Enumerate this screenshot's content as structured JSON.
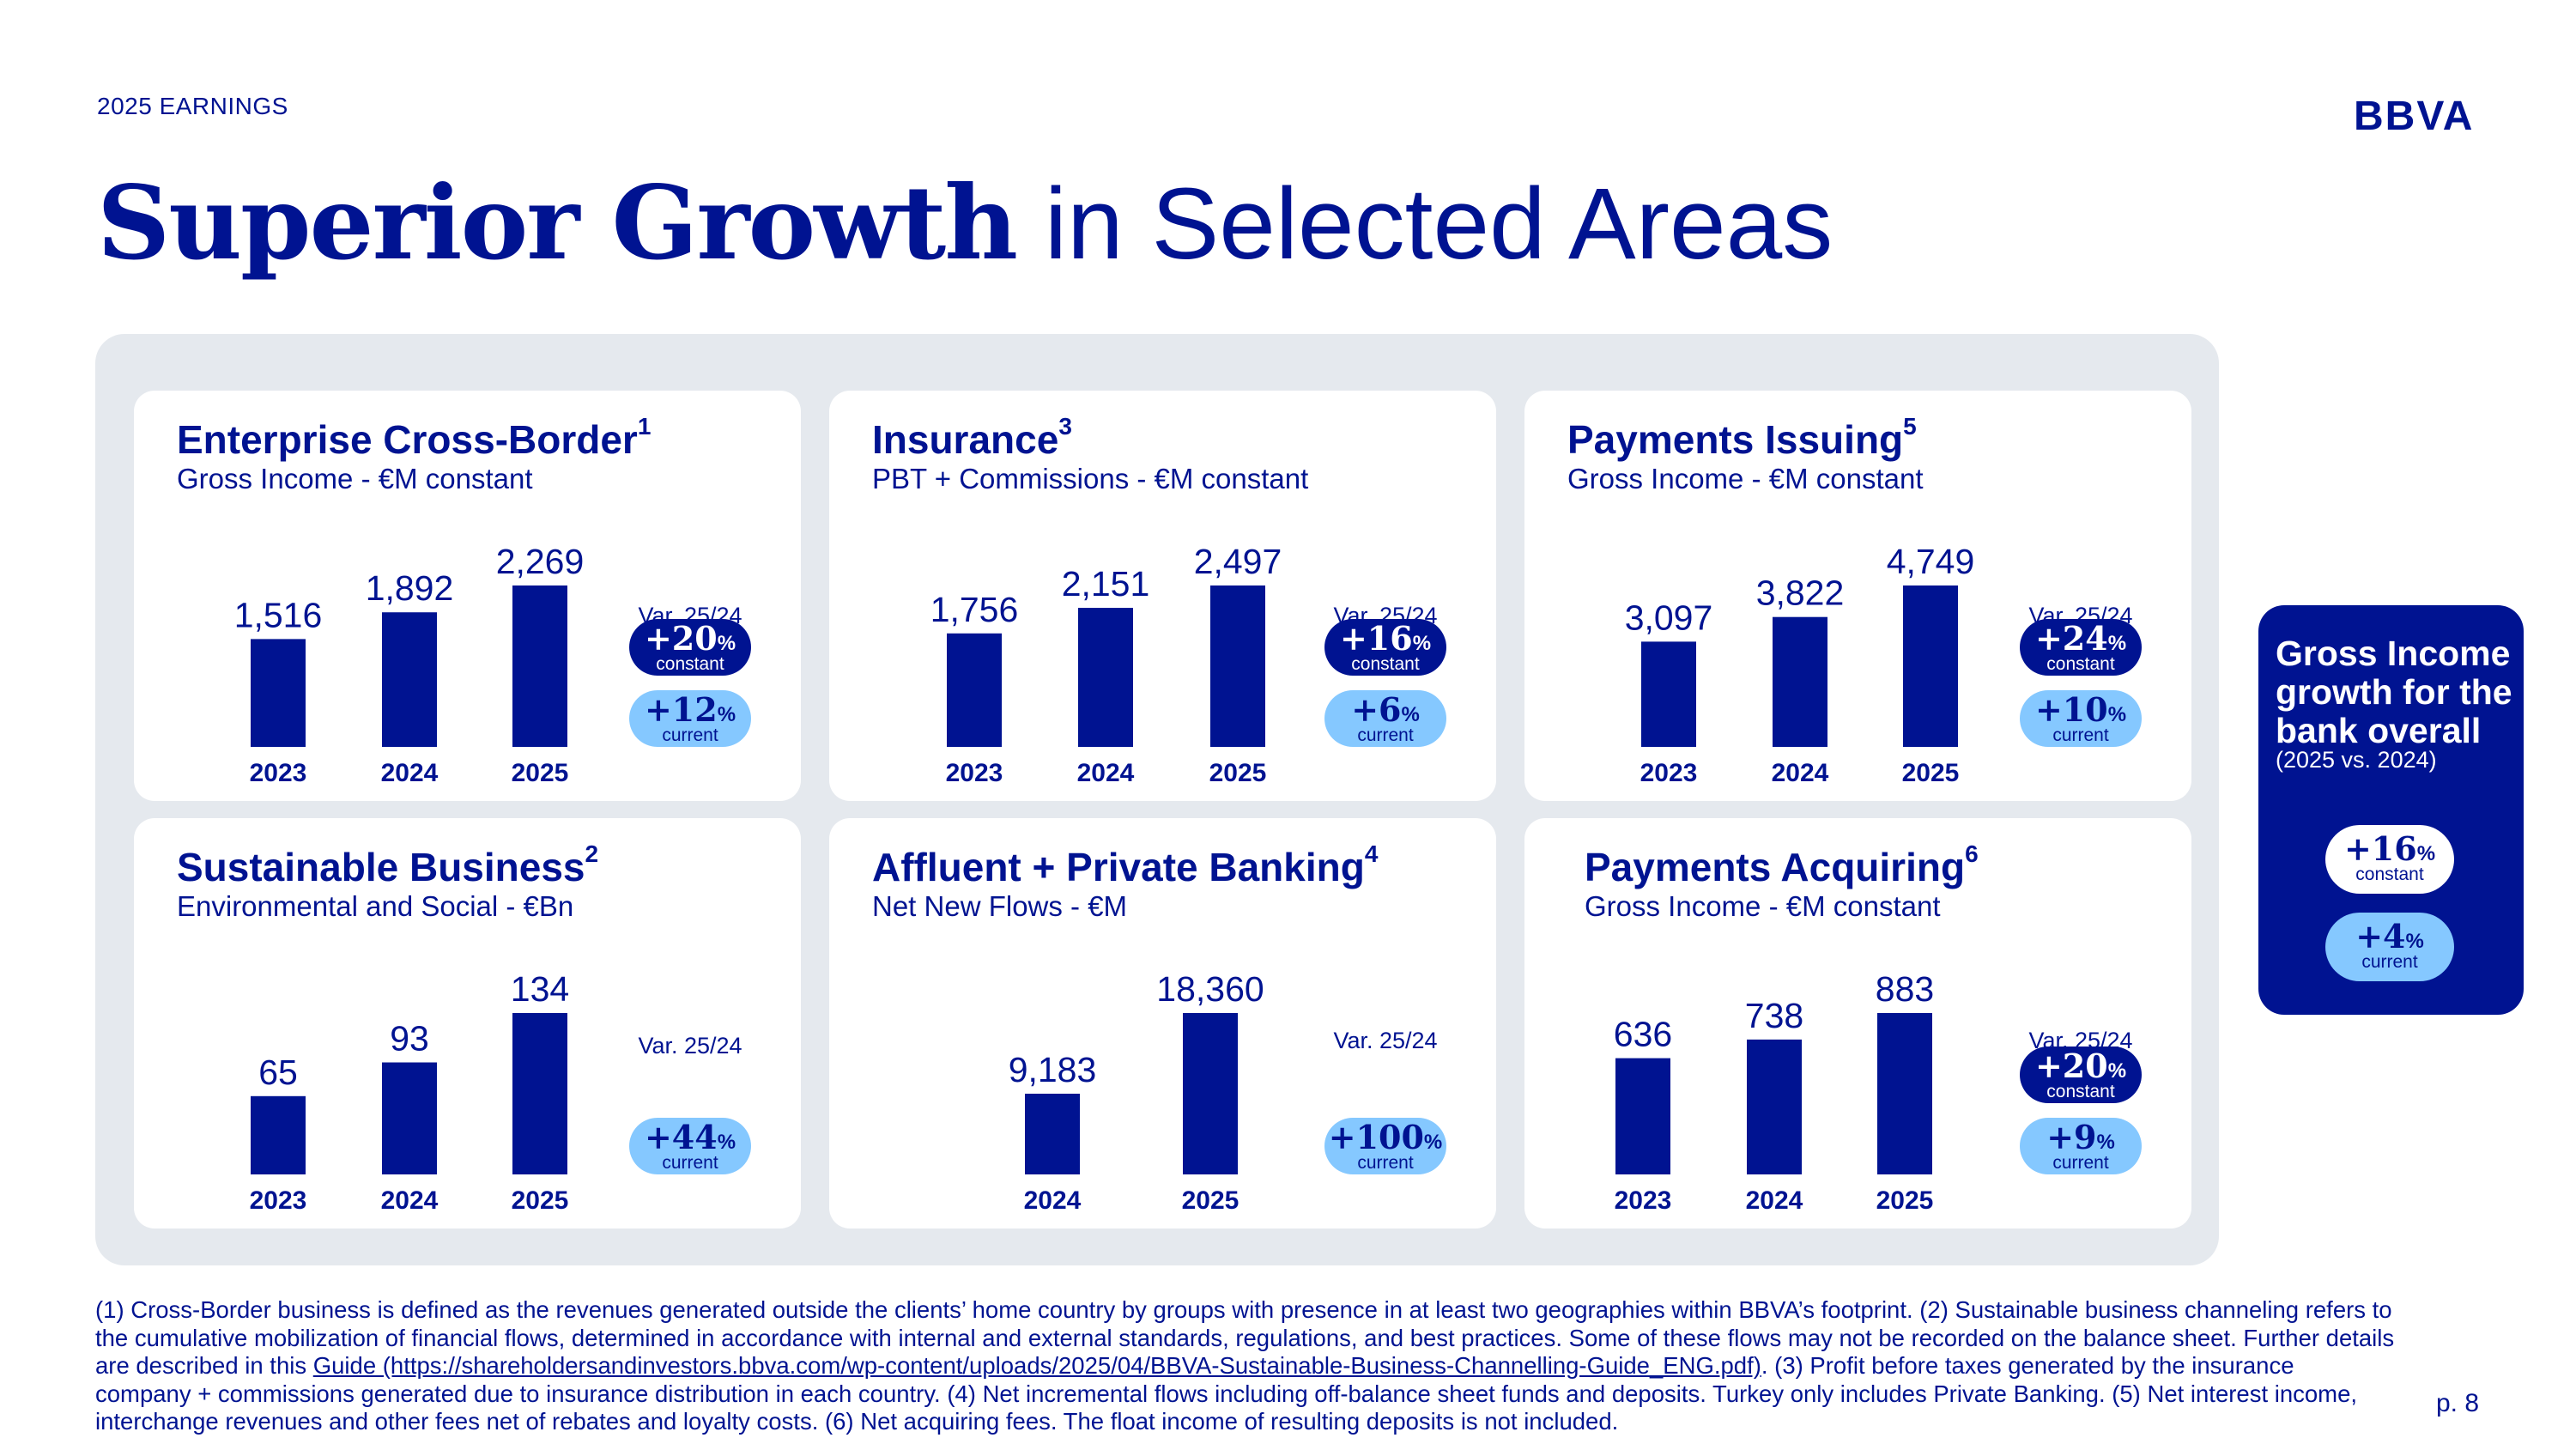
{
  "header": {
    "eyebrow": "2025 EARNINGS",
    "logo": "BBVA",
    "title_strong": "Superior Growth",
    "title_light": "in Selected Areas"
  },
  "colors": {
    "brand": "#001391",
    "accent_light": "#85c8ff",
    "panel_bg": "#e5e9ee"
  },
  "chart_data": [
    {
      "type": "bar",
      "title": "Enterprise Cross-Border",
      "footnote_ref": "1",
      "subtitle": "Gross Income - €M constant",
      "categories": [
        "2023",
        "2024",
        "2025"
      ],
      "values": [
        1516,
        1892,
        2269
      ],
      "value_labels": [
        "1,516",
        "1,892",
        "2,269"
      ],
      "var_label": "Var. 25/24",
      "variations": [
        {
          "style": "dark",
          "value": "+20",
          "unit": "%",
          "label": "constant"
        },
        {
          "style": "light",
          "value": "+12",
          "unit": "%",
          "label": "current"
        }
      ]
    },
    {
      "type": "bar",
      "title": "Insurance",
      "footnote_ref": "3",
      "subtitle": "PBT + Commissions - €M constant",
      "categories": [
        "2023",
        "2024",
        "2025"
      ],
      "values": [
        1756,
        2151,
        2497
      ],
      "value_labels": [
        "1,756",
        "2,151",
        "2,497"
      ],
      "var_label": "Var. 25/24",
      "variations": [
        {
          "style": "dark",
          "value": "+16",
          "unit": "%",
          "label": "constant"
        },
        {
          "style": "light",
          "value": "+6",
          "unit": "%",
          "label": "current"
        }
      ]
    },
    {
      "type": "bar",
      "title": "Payments Issuing",
      "footnote_ref": "5",
      "subtitle": "Gross Income - €M constant",
      "categories": [
        "2023",
        "2024",
        "2025"
      ],
      "values": [
        3097,
        3822,
        4749
      ],
      "value_labels": [
        "3,097",
        "3,822",
        "4,749"
      ],
      "var_label": "Var. 25/24",
      "variations": [
        {
          "style": "dark",
          "value": "+24",
          "unit": "%",
          "label": "constant"
        },
        {
          "style": "light",
          "value": "+10",
          "unit": "%",
          "label": "current"
        }
      ]
    },
    {
      "type": "bar",
      "title": "Sustainable Business",
      "footnote_ref": "2",
      "subtitle": "Environmental and Social - €Bn",
      "categories": [
        "2023",
        "2024",
        "2025"
      ],
      "values": [
        65,
        93,
        134
      ],
      "value_labels": [
        "65",
        "93",
        "134"
      ],
      "var_label": "Var. 25/24",
      "variations": [
        {
          "style": "light",
          "value": "+44",
          "unit": "%",
          "label": "current"
        }
      ]
    },
    {
      "type": "bar",
      "title": "Affluent + Private Banking",
      "footnote_ref": "4",
      "subtitle": "Net New Flows - €M",
      "categories": [
        "2024",
        "2025"
      ],
      "values": [
        9183,
        18360
      ],
      "value_labels": [
        "9,183",
        "18,360"
      ],
      "var_label": "Var. 25/24",
      "variations": [
        {
          "style": "light",
          "value": "+100",
          "unit": "%",
          "label": "current"
        }
      ]
    },
    {
      "type": "bar",
      "title": "Payments Acquiring",
      "footnote_ref": "6",
      "subtitle": "Gross Income - €M constant",
      "categories": [
        "2023",
        "2024",
        "2025"
      ],
      "values": [
        636,
        738,
        883
      ],
      "value_labels": [
        "636",
        "738",
        "883"
      ],
      "var_label": "Var. 25/24",
      "variations": [
        {
          "style": "dark",
          "value": "+20",
          "unit": "%",
          "label": "constant"
        },
        {
          "style": "light",
          "value": "+9",
          "unit": "%",
          "label": "current"
        }
      ]
    }
  ],
  "summary": {
    "title": "Gross Income growth for the bank overall",
    "subtitle": "(2025 vs. 2024)",
    "variations": [
      {
        "style": "white",
        "value": "+16",
        "unit": "%",
        "label": "constant"
      },
      {
        "style": "light",
        "value": "+4",
        "unit": "%",
        "label": "current"
      }
    ]
  },
  "footnotes": {
    "text_before_link": "(1) Cross-Border business is defined as the revenues generated outside the clients’ home country by groups with presence in at least two geographies within BBVA’s footprint. (2) Sustainable business channeling refers to the cumulative mobilization of financial flows, determined in accordance with internal and external standards, regulations, and best practices. Some of these flows may not be recorded on the balance sheet. Further details are described in this ",
    "link_text": "Guide (https://shareholdersandinvestors.bbva.com/wp-content/uploads/2025/04/BBVA-Sustainable-Business-Channelling-Guide_ENG.pdf)",
    "text_after_link": ". (3) Profit before taxes generated by the insurance company + commissions generated due to insurance distribution in each country. (4) Net incremental flows including off-balance sheet funds and deposits. Turkey only includes Private Banking. (5) Net interest income, interchange revenues and other fees net of rebates and loyalty costs. (6) Net acquiring fees. The float income of resulting deposits is not included."
  },
  "page_number": "p. 8"
}
